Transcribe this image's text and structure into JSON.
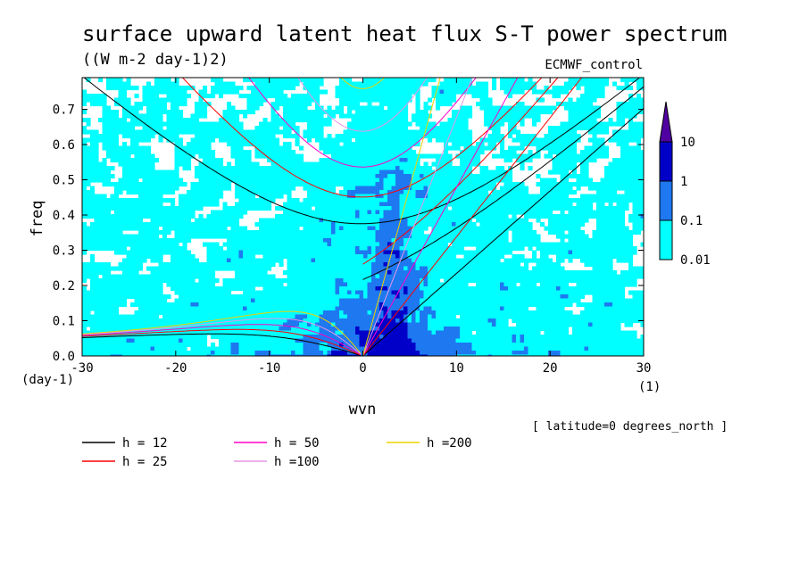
{
  "chart_data": {
    "type": "heatmap",
    "title": "surface upward latent heat flux S-T power spectrum",
    "subtitle": "((W m-2 day-1)2)",
    "model_label": "ECMWF_control",
    "xlabel": "wvn",
    "ylabel": "freq",
    "x_unit": "(1)",
    "y_unit": "(day-1)",
    "xlim": [
      -30,
      30
    ],
    "ylim": [
      0,
      0.79
    ],
    "x_ticks": [
      -30,
      -20,
      -10,
      0,
      10,
      20,
      30
    ],
    "x_tick_labels": [
      "-30",
      "-20",
      "-10",
      "0",
      "10",
      "20",
      "30"
    ],
    "y_ticks": [
      0,
      0.1,
      0.2,
      0.3,
      0.4,
      0.5,
      0.6,
      0.7
    ],
    "y_tick_labels": [
      "0.0",
      "0.1",
      "0.2",
      "0.3",
      "0.4",
      "0.5",
      "0.6",
      "0.7"
    ],
    "note": "[ latitude=0 degrees_north ]",
    "colorbar": {
      "labels": [
        "0.01",
        "0.1",
        "1",
        "10"
      ],
      "levels": [
        0.01,
        0.1,
        1,
        10
      ],
      "colors": [
        "#00ffff",
        "#1e78f0",
        "#0000c8",
        "#5000a0"
      ]
    },
    "field_colors": {
      "background": "#ffffff",
      "low": "#00ffff",
      "mid": "#1e78f0",
      "high": "#0000c8",
      "top": "#5000a0"
    },
    "dispersion_curves": [
      {
        "label": "h = 12",
        "h": 12,
        "color": "#000000"
      },
      {
        "label": "h = 25",
        "h": 25,
        "color": "#ff0000"
      },
      {
        "label": "h = 50",
        "h": 50,
        "color": "#ff00c8"
      },
      {
        "label": "h =100",
        "h": 100,
        "color": "#e696e6"
      },
      {
        "label": "h =200",
        "h": 200,
        "color": "#f0d200"
      }
    ]
  }
}
